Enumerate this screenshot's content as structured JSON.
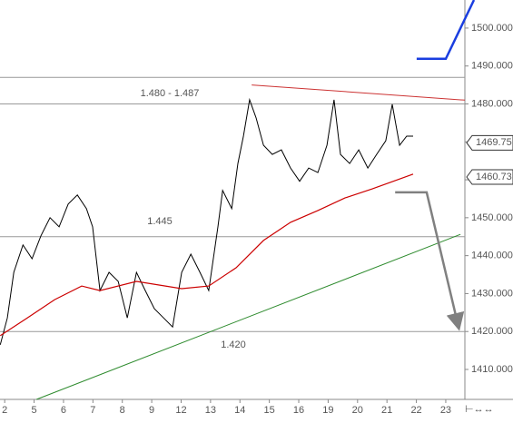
{
  "chart_data": {
    "type": "line",
    "xlim": [
      -0.16,
      15.65
    ],
    "ylim": [
      1402.1,
      1507.4
    ],
    "xticks": [
      {
        "value": 0,
        "label": "2"
      },
      {
        "value": 1,
        "label": "5"
      },
      {
        "value": 2,
        "label": "6"
      },
      {
        "value": 3,
        "label": "7"
      },
      {
        "value": 4,
        "label": "8"
      },
      {
        "value": 5,
        "label": "9"
      },
      {
        "value": 6,
        "label": "12"
      },
      {
        "value": 7,
        "label": "13"
      },
      {
        "value": 8,
        "label": "14"
      },
      {
        "value": 9,
        "label": "15"
      },
      {
        "value": 10,
        "label": "16"
      },
      {
        "value": 11,
        "label": "19"
      },
      {
        "value": 12,
        "label": "20"
      },
      {
        "value": 13,
        "label": "21"
      },
      {
        "value": 14,
        "label": "22"
      },
      {
        "value": 15,
        "label": "23"
      }
    ],
    "yticks": [
      {
        "value": 1410,
        "label": "1410.000"
      },
      {
        "value": 1420,
        "label": "1420.000"
      },
      {
        "value": 1430,
        "label": "1430.000"
      },
      {
        "value": 1440,
        "label": "1440.000"
      },
      {
        "value": 1450,
        "label": "1450.000"
      },
      {
        "value": 1460,
        "label": "1460.000"
      },
      {
        "value": 1470,
        "label": "1470.000"
      },
      {
        "value": 1480,
        "label": "1480.000"
      },
      {
        "value": 1490,
        "label": "1490.000"
      },
      {
        "value": 1500,
        "label": "1500.000"
      }
    ],
    "series": [
      {
        "color": "#000000",
        "x": [
          -0.15,
          0.09,
          0.31,
          0.62,
          0.93,
          1.23,
          1.54,
          1.85,
          2.16,
          2.47,
          2.78,
          2.99,
          3.24,
          3.55,
          3.86,
          4.17,
          4.48,
          4.78,
          5.09,
          5.4,
          5.71,
          6.02,
          6.33,
          6.64,
          6.94,
          7.25,
          7.41,
          7.72,
          7.93,
          8.12,
          8.33,
          8.55,
          8.8,
          9.1,
          9.41,
          9.72,
          10.03,
          10.34,
          10.65,
          10.96,
          11.2,
          11.42,
          11.73,
          12.04,
          12.35,
          12.65,
          12.96,
          13.18,
          13.43,
          13.67,
          13.89
        ],
        "values": [
          1416.5,
          1423.6,
          1435.6,
          1442.8,
          1439.2,
          1445.2,
          1450.0,
          1447.6,
          1453.6,
          1456.0,
          1452.4,
          1447.6,
          1430.8,
          1435.6,
          1433.2,
          1423.6,
          1435.6,
          1430.8,
          1426.0,
          1423.6,
          1421.2,
          1435.6,
          1440.4,
          1435.6,
          1430.8,
          1447.6,
          1457.2,
          1452.4,
          1464.3,
          1471.5,
          1481.1,
          1476.3,
          1469.1,
          1466.7,
          1467.9,
          1463.1,
          1459.6,
          1463.1,
          1461.9,
          1469.1,
          1481.1,
          1466.7,
          1464.3,
          1467.9,
          1463.1,
          1466.7,
          1470.3,
          1479.9,
          1469.1,
          1471.5,
          1471.5
        ]
      },
      {
        "color": "#cc0000",
        "x": [
          -0.15,
          0.77,
          1.7,
          2.62,
          3.24,
          4.48,
          6.02,
          6.94,
          7.87,
          8.8,
          9.72,
          10.65,
          11.57,
          12.5,
          13.89
        ],
        "values": [
          1418.9,
          1423.6,
          1428.4,
          1432.0,
          1430.8,
          1433.2,
          1431.3,
          1432.0,
          1436.8,
          1444.0,
          1448.8,
          1451.9,
          1455.2,
          1457.6,
          1461.5
        ]
      }
    ],
    "hlines": [
      1487,
      1480,
      1445,
      1420
    ],
    "trendlines": [
      {
        "color": "#cc3333",
        "x": [
          8.4,
          15.65
        ],
        "values": [
          1485,
          1481
        ]
      },
      {
        "color": "#2e8b2e",
        "x": [
          1.08,
          15.5
        ],
        "values": [
          1402.1,
          1445.6
        ]
      },
      {
        "color": "#1a3ee0",
        "x": [
          14.01,
          15.0,
          15.96
        ],
        "values": [
          1491.9,
          1491.9,
          1507.4
        ]
      },
      {
        "color": "#808080",
        "x": [
          13.28,
          14.35,
          15.43
        ],
        "values": [
          1456.7,
          1456.7,
          1421.3
        ]
      }
    ],
    "annotations": [
      "1.480 - 1.487",
      "1.445",
      "1.420"
    ],
    "price_tags": [
      1469.75,
      1460.73
    ]
  }
}
